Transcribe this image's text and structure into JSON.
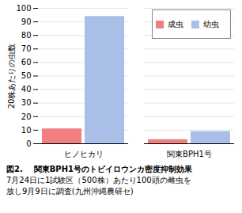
{
  "chart_data": {
    "type": "bar",
    "title": "図2.    関東BPH1号のトビイロウンカ密度抑制効果",
    "annotations": [
      "7月24日に1試験区（500株）あたり100頭の雌虫を",
      "放し9月9日に調査(九州沖縄農研セ)"
    ],
    "categories": [
      "ヒノヒカリ",
      "関東BPH1号"
    ],
    "series": [
      {
        "name": "成虫",
        "color": "#F08080",
        "values": [
          11,
          3
        ]
      },
      {
        "name": "幼虫",
        "color": "#AABFE8",
        "values": [
          94,
          9
        ]
      }
    ],
    "ylabel": "20株あたりの虫数",
    "ylim": [
      0,
      100
    ],
    "yticks": [
      0,
      10,
      20,
      30,
      40,
      50,
      60,
      70,
      80,
      90,
      100
    ],
    "grid": true,
    "legend": "upper right"
  }
}
